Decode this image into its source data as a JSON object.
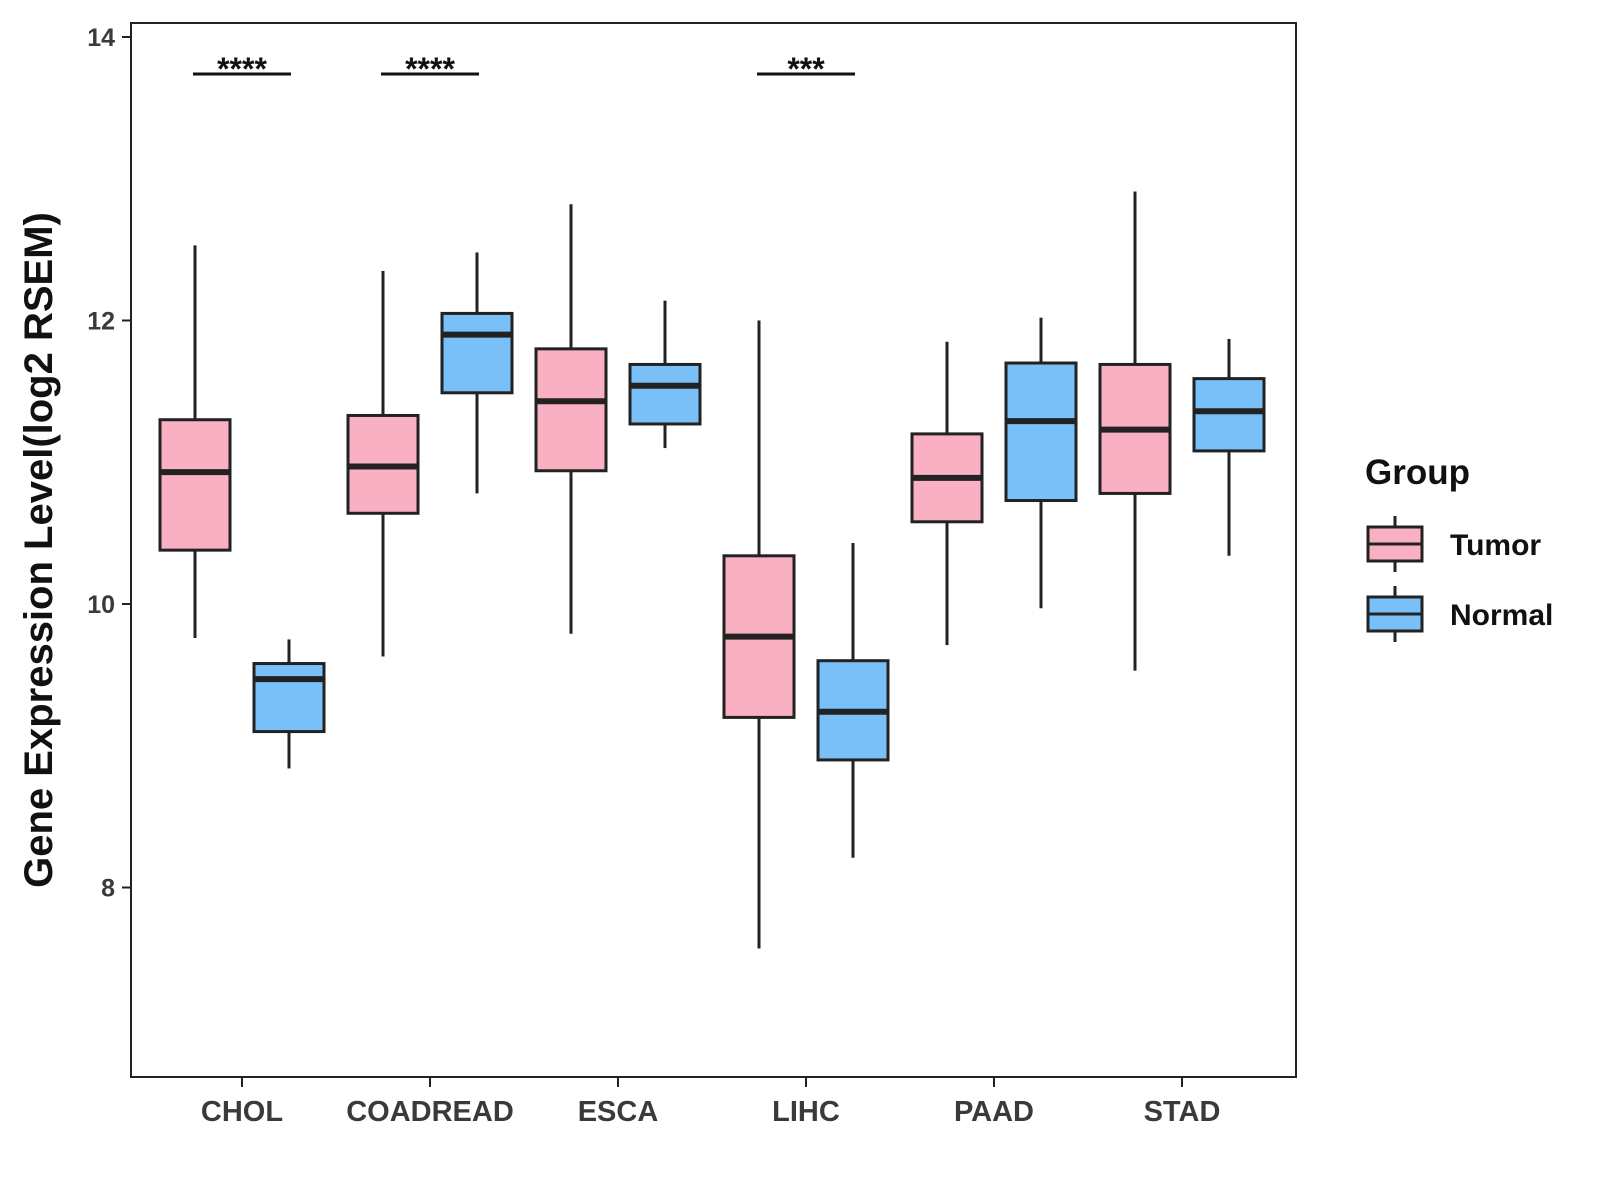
{
  "chart_data": {
    "type": "boxplot",
    "title": "",
    "xlabel": "",
    "ylabel": "Gene Expression Level(log2 RSEM)",
    "ylim": [
      6.7,
      14.15
    ],
    "yticks": [
      8,
      10,
      12,
      14
    ],
    "ytick_labels": [
      "8",
      "10",
      "12",
      "14"
    ],
    "grid": false,
    "categories": [
      "CHOL",
      "COADREAD",
      "ESCA",
      "LIHC",
      "PAAD",
      "STAD"
    ],
    "legend": {
      "title": "Group",
      "position": "right",
      "entries": [
        "Tumor",
        "Normal"
      ]
    },
    "series": [
      {
        "name": "Tumor",
        "color": "#f9b0c3",
        "boxes": [
          {
            "min": 9.76,
            "q1": 10.38,
            "median": 10.93,
            "q3": 11.3,
            "max": 12.53
          },
          {
            "min": 9.63,
            "q1": 10.64,
            "median": 10.97,
            "q3": 11.33,
            "max": 12.35
          },
          {
            "min": 9.79,
            "q1": 10.94,
            "median": 11.43,
            "q3": 11.8,
            "max": 12.82
          },
          {
            "min": 7.57,
            "q1": 9.2,
            "median": 9.77,
            "q3": 10.34,
            "max": 12.0
          },
          {
            "min": 9.71,
            "q1": 10.58,
            "median": 10.89,
            "q3": 11.2,
            "max": 11.85
          },
          {
            "min": 9.53,
            "q1": 10.78,
            "median": 11.23,
            "q3": 11.69,
            "max": 12.91
          }
        ]
      },
      {
        "name": "Normal",
        "color": "#79c0f8",
        "boxes": [
          {
            "min": 8.84,
            "q1": 9.1,
            "median": 9.47,
            "q3": 9.58,
            "max": 9.75
          },
          {
            "min": 10.78,
            "q1": 11.49,
            "median": 11.9,
            "q3": 12.05,
            "max": 12.48
          },
          {
            "min": 11.1,
            "q1": 11.27,
            "median": 11.54,
            "q3": 11.69,
            "max": 12.14
          },
          {
            "min": 8.21,
            "q1": 8.9,
            "median": 9.24,
            "q3": 9.6,
            "max": 10.43
          },
          {
            "min": 9.97,
            "q1": 10.73,
            "median": 11.29,
            "q3": 11.7,
            "max": 12.02
          },
          {
            "min": 10.34,
            "q1": 11.08,
            "median": 11.36,
            "q3": 11.59,
            "max": 11.87
          }
        ]
      }
    ],
    "significance": [
      {
        "category": "CHOL",
        "label": "****"
      },
      {
        "category": "COADREAD",
        "label": "****"
      },
      {
        "category": "LIHC",
        "label": "***"
      }
    ]
  }
}
